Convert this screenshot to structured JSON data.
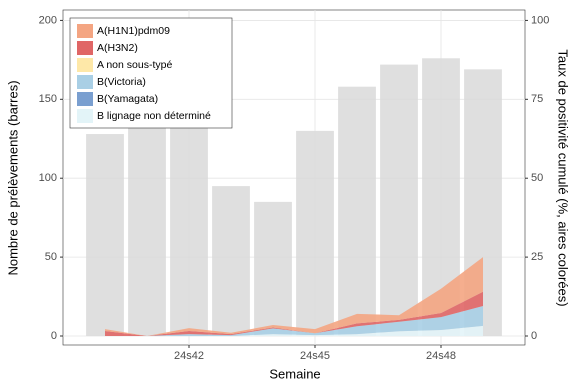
{
  "chart_data": {
    "type": "bar",
    "x_label": "Semaine",
    "y_label": "Nombre de prélèvements (barres)",
    "y2_label": "Taux de positivité cumulé (%, aires colorées)",
    "categories": [
      null,
      null,
      "24s42",
      null,
      null,
      "24s45",
      null,
      null,
      "24s48",
      null
    ],
    "values": [
      128,
      132,
      134,
      95,
      85,
      130,
      158,
      172,
      176,
      169
    ],
    "color": "#d9d9d9",
    "ylim": [
      -5.7,
      206.6
    ],
    "yticks": [
      0,
      50,
      100,
      150,
      200
    ],
    "y2lim": [
      -2.85,
      103.3
    ],
    "y2ticks": [
      0,
      25,
      50,
      75,
      100
    ],
    "grid": true,
    "legend": "top-left",
    "series": [
      {
        "name": "A(H1N1)pdm09",
        "color": "#f4a582",
        "axis": "y2",
        "values": [
          0.6,
          0,
          0.9,
          0.4,
          0.8,
          1.3,
          3.0,
          1.5,
          7.7,
          11
        ]
      },
      {
        "name": "A(H3N2)",
        "color": "#e06666",
        "axis": "y2",
        "values": [
          1.6,
          0,
          1.0,
          0.3,
          0.3,
          0,
          0.9,
          0.6,
          1.3,
          4.5
        ]
      },
      {
        "name": "A non sous-typé",
        "color": "#fee8a8",
        "axis": "y2",
        "values": [
          0,
          0,
          0,
          0,
          0,
          0,
          0,
          0,
          0,
          0
        ]
      },
      {
        "name": "B(Victoria)",
        "color": "#a9cfe5",
        "axis": "y2",
        "values": [
          0,
          0,
          0.6,
          0.3,
          1.8,
          0.6,
          2.5,
          3.0,
          4.1,
          6.3
        ]
      },
      {
        "name": "B(Yamagata)",
        "color": "#7a9fd0",
        "axis": "y2",
        "values": [
          0,
          0,
          0,
          0,
          0,
          0,
          0,
          0,
          0,
          0
        ]
      },
      {
        "name": "B lignage non déterminé",
        "color": "#e3f4f8",
        "axis": "y2",
        "values": [
          0,
          0,
          0,
          0,
          0.6,
          0.3,
          0.6,
          1.5,
          1.9,
          3.2
        ]
      }
    ]
  }
}
